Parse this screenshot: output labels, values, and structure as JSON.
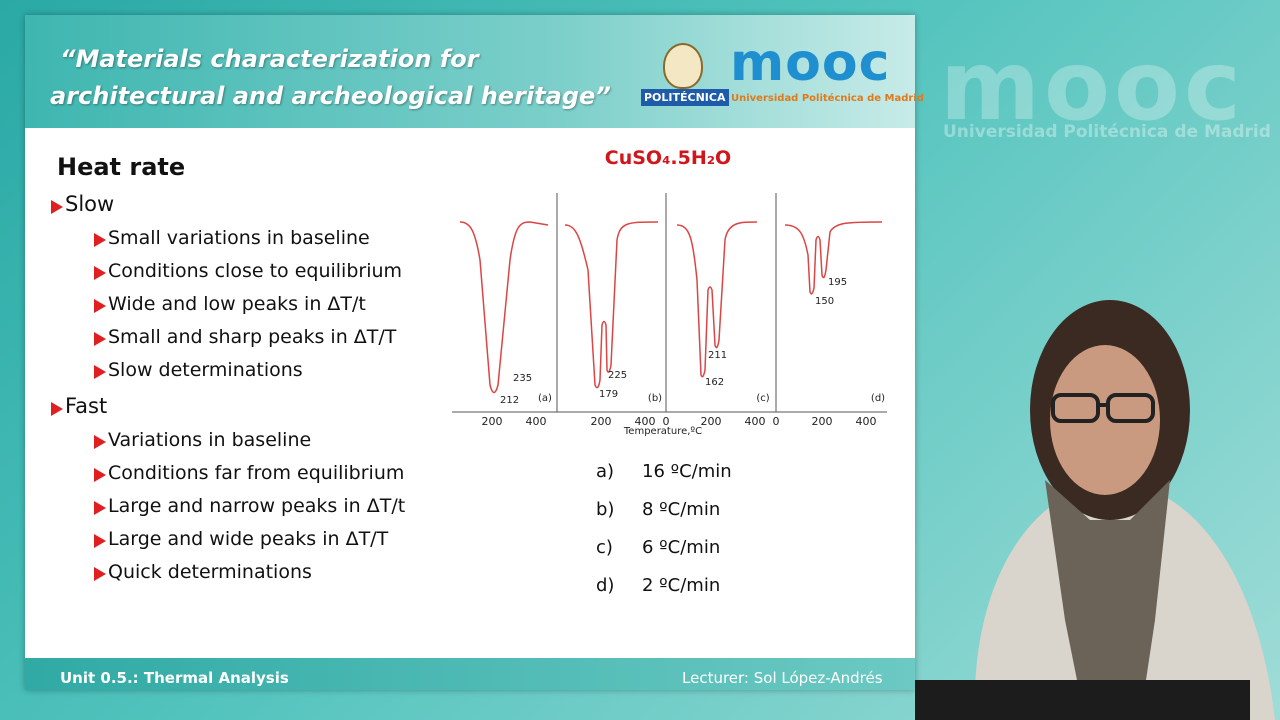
{
  "header": {
    "title_line1": "“Materials characterization for",
    "title_line2": "architectural and archeological heritage”",
    "logo1": "POLITÉCNICA",
    "logo2_word": "mooc",
    "logo2_sub": "Universidad Politécnica de Madrid"
  },
  "watermark": {
    "word": "mooc",
    "sub": "Universidad Politécnica de Madrid"
  },
  "slide": {
    "heading": "Heat rate",
    "items": [
      {
        "label": "Slow",
        "subitems": [
          "Small variations in baseline",
          "Conditions close to equilibrium",
          "Wide and low peaks in ΔT/t",
          "Small and sharp peaks in ΔT/T",
          "Slow determinations"
        ]
      },
      {
        "label": "Fast",
        "subitems": [
          "Variations in baseline",
          "Conditions far from equilibrium",
          "Large and narrow peaks in ΔT/t",
          "Large and wide peaks in ΔT/T",
          "Quick determinations"
        ]
      }
    ],
    "figure": {
      "title": "CuSO₄.5H₂O",
      "x_label": "Temperature,ºC",
      "panels": [
        {
          "letter": "(a)",
          "peaks": [
            "235",
            "212"
          ],
          "x_ticks": [
            "200",
            "400"
          ]
        },
        {
          "letter": "(b)",
          "peaks": [
            "225",
            "179"
          ],
          "x_ticks": [
            "200",
            "400"
          ]
        },
        {
          "letter": "(c)",
          "peaks": [
            "211",
            "162"
          ],
          "x_ticks": [
            "0",
            "200",
            "400"
          ]
        },
        {
          "letter": "(d)",
          "peaks": [
            "195",
            "150"
          ],
          "x_ticks": [
            "0",
            "200",
            "400"
          ]
        }
      ]
    },
    "rates": [
      {
        "letter": "a)",
        "rate": "16 ºC/min"
      },
      {
        "letter": "b)",
        "rate": "8 ºC/min"
      },
      {
        "letter": "c)",
        "rate": "6 ºC/min"
      },
      {
        "letter": "d)",
        "rate": "2 ºC/min"
      }
    ]
  },
  "footer": {
    "unit": "Unit 0.5.: Thermal Analysis",
    "lecturer": "Lecturer: Sol López-Andrés"
  }
}
